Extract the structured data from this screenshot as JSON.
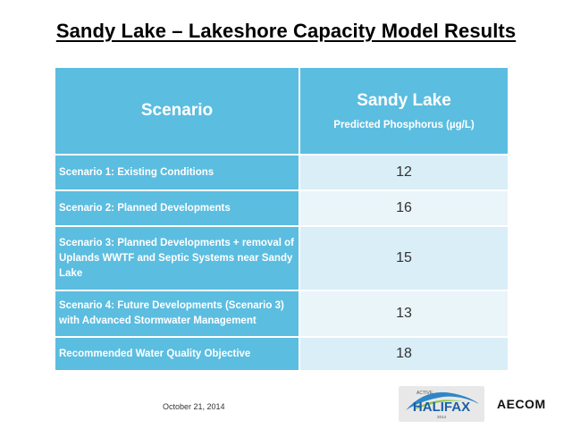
{
  "title": "Sandy Lake – Lakeshore Capacity Model Results",
  "table": {
    "header_scenario": "Scenario",
    "header_lake": "Sandy Lake",
    "header_metric": "Predicted Phosphorus (µg/L)",
    "rows": [
      {
        "scenario": "Scenario 1: Existing Conditions",
        "value": "12"
      },
      {
        "scenario": "Scenario 2: Planned Developments",
        "value": "16"
      },
      {
        "scenario": "Scenario 3: Planned Developments + removal of Uplands WWTF and Septic Systems near Sandy Lake",
        "value": "15"
      },
      {
        "scenario": "Scenario 4: Future Developments (Scenario 3) with Advanced Stormwater Management",
        "value": "13"
      },
      {
        "scenario": "Recommended Water Quality Objective",
        "value": "18"
      }
    ]
  },
  "footer": {
    "date": "October 21, 2014",
    "logo_halifax_text": "HALIFAX",
    "logo_halifax_small": "ACTIVE",
    "logo_halifax_year": "2014",
    "logo_aecom": "AECOM"
  },
  "colors": {
    "header_blue": "#5bbde0",
    "row_light_a": "#d9eef7",
    "row_light_b": "#eaf5fa"
  }
}
